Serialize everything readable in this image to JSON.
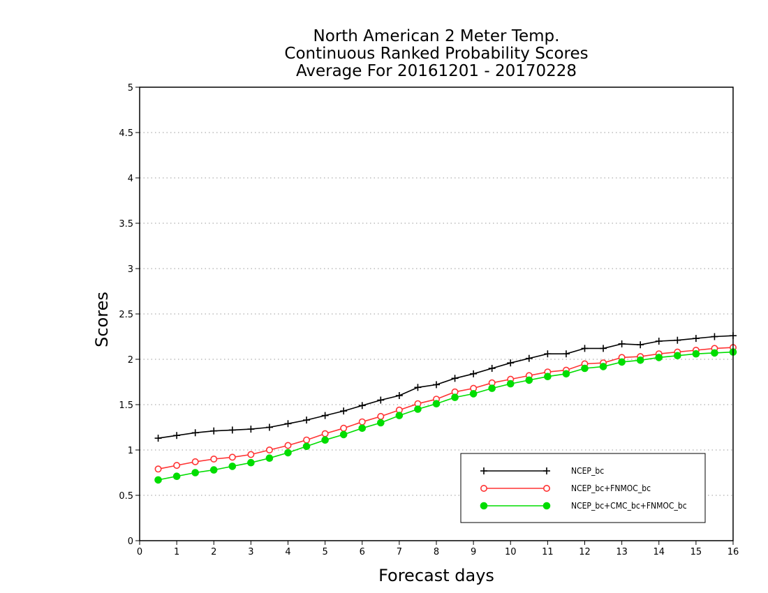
{
  "chart_data": {
    "type": "line",
    "title_lines": [
      "North American 2 Meter Temp.",
      "Continuous Ranked Probability Scores",
      "Average For 20161201 - 20170228"
    ],
    "xlabel": "Forecast days",
    "ylabel": "Scores",
    "xlim": [
      0,
      16
    ],
    "ylim": [
      0,
      5
    ],
    "x_ticks": [
      "0",
      "1",
      "2",
      "3",
      "4",
      "5",
      "6",
      "7",
      "8",
      "9",
      "10",
      "11",
      "12",
      "13",
      "14",
      "15",
      "16"
    ],
    "y_ticks": [
      "0",
      "0.5",
      "1",
      "1.5",
      "2",
      "2.5",
      "3",
      "3.5",
      "4",
      "4.5",
      "5"
    ],
    "grid": "horizontal dotted",
    "legend_position": "bottom-right",
    "x": [
      0.5,
      1,
      1.5,
      2,
      2.5,
      3,
      3.5,
      4,
      4.5,
      5,
      5.5,
      6,
      6.5,
      7,
      7.5,
      8,
      8.5,
      9,
      9.5,
      10,
      10.5,
      11,
      11.5,
      12,
      12.5,
      13,
      13.5,
      14,
      14.5,
      15,
      15.5,
      16
    ],
    "series": [
      {
        "name": "NCEP_bc",
        "color": "#000000",
        "marker": "plus",
        "values": [
          1.13,
          1.16,
          1.19,
          1.21,
          1.22,
          1.23,
          1.25,
          1.29,
          1.33,
          1.38,
          1.43,
          1.49,
          1.55,
          1.6,
          1.69,
          1.72,
          1.79,
          1.84,
          1.9,
          1.96,
          2.01,
          2.06,
          2.06,
          2.12,
          2.12,
          2.17,
          2.16,
          2.2,
          2.21,
          2.23,
          2.25,
          2.26
        ]
      },
      {
        "name": "NCEP_bc+FNMOC_bc",
        "color": "#ff3333",
        "marker": "open-circle",
        "values": [
          0.79,
          0.83,
          0.87,
          0.9,
          0.92,
          0.95,
          1.0,
          1.05,
          1.11,
          1.18,
          1.24,
          1.31,
          1.37,
          1.44,
          1.51,
          1.56,
          1.64,
          1.68,
          1.74,
          1.78,
          1.82,
          1.86,
          1.88,
          1.95,
          1.96,
          2.02,
          2.03,
          2.06,
          2.08,
          2.1,
          2.12,
          2.13
        ]
      },
      {
        "name": "NCEP_bc+CMC_bc+FNMOC_bc",
        "color": "#00dd00",
        "marker": "filled-circle",
        "values": [
          0.67,
          0.71,
          0.75,
          0.78,
          0.82,
          0.86,
          0.91,
          0.97,
          1.04,
          1.11,
          1.17,
          1.24,
          1.3,
          1.38,
          1.45,
          1.51,
          1.58,
          1.62,
          1.68,
          1.73,
          1.77,
          1.81,
          1.84,
          1.9,
          1.92,
          1.97,
          1.99,
          2.02,
          2.04,
          2.06,
          2.07,
          2.08
        ]
      }
    ]
  }
}
